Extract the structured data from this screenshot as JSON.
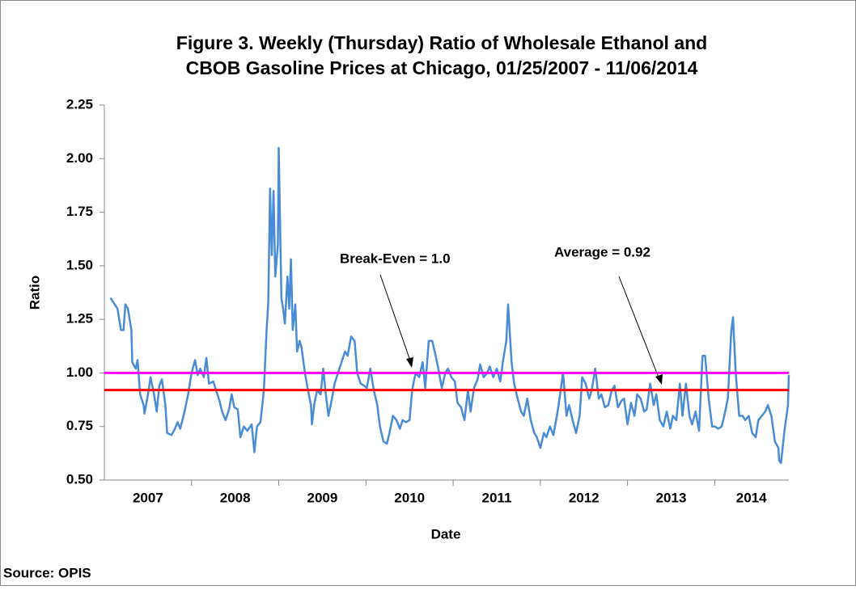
{
  "chart_data": {
    "type": "line",
    "title": "Figure 3. Weekly (Thursday) Ratio of Wholesale Ethanol and",
    "subtitle": "CBOB Gasoline Prices at Chicago, 01/25/2007 - 11/06/2014",
    "ylabel": "Ratio",
    "xlabel": "Date",
    "source": "Source: OPIS",
    "xlim": [
      2007.0,
      2014.85
    ],
    "xticks": [
      {
        "value": 2007.5,
        "label": "2007"
      },
      {
        "value": 2008.5,
        "label": "2008"
      },
      {
        "value": 2009.5,
        "label": "2009"
      },
      {
        "value": 2010.5,
        "label": "2010"
      },
      {
        "value": 2011.5,
        "label": "2011"
      },
      {
        "value": 2012.5,
        "label": "2012"
      },
      {
        "value": 2013.5,
        "label": "2013"
      },
      {
        "value": 2014.42,
        "label": "2014"
      }
    ],
    "ylim": [
      0.5,
      2.25
    ],
    "yticks": [
      {
        "value": 0.5,
        "label": "0.50"
      },
      0.75,
      {
        "value": 1.0,
        "label": "1.00"
      },
      1.25,
      {
        "value": 1.5,
        "label": "1.50"
      },
      1.75,
      {
        "value": 2.0,
        "label": "2.00"
      },
      2.25
    ],
    "reference_lines": [
      {
        "value": 1.0,
        "color": "#ff00ff"
      },
      {
        "value": 0.92,
        "color": "#ff0000"
      }
    ],
    "annotations": [
      {
        "text": "Break-Even = 1.0"
      },
      {
        "text": "Average = 0.92"
      }
    ],
    "series": [
      {
        "name": "Ratio",
        "color": "#4a8bd6",
        "x": [
          2007.07,
          2007.15,
          2007.19,
          2007.22,
          2007.24,
          2007.27,
          2007.31,
          2007.32,
          2007.36,
          2007.38,
          2007.41,
          2007.45,
          2007.46,
          2007.5,
          2007.53,
          2007.57,
          2007.6,
          2007.63,
          2007.66,
          2007.7,
          2007.72,
          2007.77,
          2007.81,
          2007.84,
          2007.87,
          2007.92,
          2007.96,
          2008.0,
          2008.04,
          2008.07,
          2008.1,
          2008.14,
          2008.17,
          2008.2,
          2008.25,
          2008.28,
          2008.32,
          2008.35,
          2008.39,
          2008.43,
          2008.46,
          2008.49,
          2008.53,
          2008.56,
          2008.6,
          2008.64,
          2008.69,
          2008.72,
          2008.75,
          2008.79,
          2008.83,
          2008.86,
          2008.88,
          2008.9,
          2008.92,
          2008.94,
          2008.96,
          2008.99,
          2009.0,
          2009.03,
          2009.05,
          2009.07,
          2009.1,
          2009.12,
          2009.14,
          2009.16,
          2009.19,
          2009.21,
          2009.24,
          2009.26,
          2009.3,
          2009.33,
          2009.37,
          2009.38,
          2009.41,
          2009.44,
          2009.48,
          2009.51,
          2009.54,
          2009.57,
          2009.61,
          2009.64,
          2009.68,
          2009.72,
          2009.76,
          2009.79,
          2009.83,
          2009.87,
          2009.9,
          2009.94,
          2009.98,
          2010.01,
          2010.05,
          2010.09,
          2010.13,
          2010.16,
          2010.2,
          2010.24,
          2010.27,
          2010.31,
          2010.35,
          2010.39,
          2010.42,
          2010.46,
          2010.5,
          2010.53,
          2010.57,
          2010.61,
          2010.65,
          2010.68,
          2010.72,
          2010.76,
          2010.8,
          2010.83,
          2010.87,
          2010.91,
          2010.94,
          2010.98,
          2011.02,
          2011.05,
          2011.09,
          2011.13,
          2011.17,
          2011.2,
          2011.24,
          2011.28,
          2011.31,
          2011.35,
          2011.39,
          2011.42,
          2011.46,
          2011.5,
          2011.54,
          2011.57,
          2011.61,
          2011.63,
          2011.67,
          2011.7,
          2011.74,
          2011.78,
          2011.81,
          2011.85,
          2011.89,
          2011.93,
          2011.96,
          2012.0,
          2012.04,
          2012.07,
          2012.11,
          2012.15,
          2012.19,
          2012.22,
          2012.26,
          2012.3,
          2012.33,
          2012.37,
          2012.41,
          2012.45,
          2012.48,
          2012.52,
          2012.56,
          2012.59,
          2012.63,
          2012.67,
          2012.7,
          2012.74,
          2012.78,
          2012.82,
          2012.85,
          2012.89,
          2012.93,
          2012.96,
          2013.0,
          2013.04,
          2013.08,
          2013.11,
          2013.15,
          2013.19,
          2013.22,
          2013.26,
          2013.3,
          2013.33,
          2013.37,
          2013.41,
          2013.45,
          2013.49,
          2013.52,
          2013.56,
          2013.6,
          2013.63,
          2013.67,
          2013.71,
          2013.74,
          2013.78,
          2013.82,
          2013.86,
          2013.89,
          2013.93,
          2013.97,
          2014.0,
          2014.04,
          2014.08,
          2014.11,
          2014.15,
          2014.19,
          2014.21,
          2014.24,
          2014.28,
          2014.32,
          2014.35,
          2014.39,
          2014.43,
          2014.47,
          2014.5,
          2014.54,
          2014.58,
          2014.61,
          2014.65,
          2014.69,
          2014.73,
          2014.74,
          2014.76,
          2014.8,
          2014.84,
          2014.85
        ],
        "values": [
          1.35,
          1.3,
          1.2,
          1.2,
          1.32,
          1.3,
          1.2,
          1.05,
          1.02,
          1.06,
          0.9,
          0.85,
          0.81,
          0.9,
          0.98,
          0.9,
          0.82,
          0.94,
          0.97,
          0.85,
          0.72,
          0.71,
          0.74,
          0.77,
          0.74,
          0.82,
          0.9,
          1.0,
          1.06,
          0.99,
          1.02,
          0.98,
          1.07,
          0.95,
          0.96,
          0.92,
          0.87,
          0.82,
          0.78,
          0.83,
          0.9,
          0.84,
          0.83,
          0.7,
          0.75,
          0.73,
          0.76,
          0.63,
          0.75,
          0.77,
          0.92,
          1.2,
          1.33,
          1.86,
          1.55,
          1.85,
          1.45,
          1.6,
          2.05,
          1.35,
          1.3,
          1.23,
          1.45,
          1.3,
          1.53,
          1.2,
          1.32,
          1.1,
          1.15,
          1.12,
          1.0,
          0.93,
          0.85,
          0.76,
          0.86,
          0.92,
          0.9,
          1.02,
          0.9,
          0.8,
          0.88,
          0.95,
          1.0,
          1.05,
          1.1,
          1.08,
          1.17,
          1.15,
          1.0,
          0.95,
          0.94,
          0.93,
          1.02,
          0.92,
          0.85,
          0.75,
          0.68,
          0.67,
          0.72,
          0.8,
          0.78,
          0.74,
          0.78,
          0.77,
          0.78,
          0.92,
          1.0,
          0.98,
          1.05,
          0.93,
          1.15,
          1.15,
          1.08,
          1.02,
          0.93,
          1.0,
          1.02,
          0.98,
          0.96,
          0.86,
          0.84,
          0.78,
          0.92,
          0.82,
          0.93,
          0.97,
          1.04,
          0.98,
          1.0,
          1.03,
          0.98,
          1.02,
          0.96,
          1.05,
          1.15,
          1.32,
          1.05,
          0.95,
          0.88,
          0.82,
          0.8,
          0.88,
          0.78,
          0.72,
          0.7,
          0.65,
          0.72,
          0.7,
          0.75,
          0.71,
          0.8,
          0.88,
          1.0,
          0.8,
          0.85,
          0.78,
          0.72,
          0.8,
          0.98,
          0.95,
          0.88,
          0.92,
          1.02,
          0.88,
          0.9,
          0.84,
          0.85,
          0.92,
          0.94,
          0.84,
          0.87,
          0.88,
          0.76,
          0.86,
          0.8,
          0.9,
          0.88,
          0.82,
          0.83,
          0.95,
          0.85,
          0.9,
          0.78,
          0.75,
          0.82,
          0.74,
          0.8,
          0.78,
          0.95,
          0.8,
          0.95,
          0.8,
          0.76,
          0.82,
          0.73,
          1.08,
          1.08,
          0.88,
          0.75,
          0.75,
          0.74,
          0.75,
          0.8,
          0.88,
          1.2,
          1.26,
          1.0,
          0.8,
          0.8,
          0.78,
          0.8,
          0.72,
          0.7,
          0.78,
          0.8,
          0.82,
          0.85,
          0.8,
          0.68,
          0.65,
          0.59,
          0.58,
          0.73,
          0.85,
          0.99
        ]
      }
    ]
  }
}
